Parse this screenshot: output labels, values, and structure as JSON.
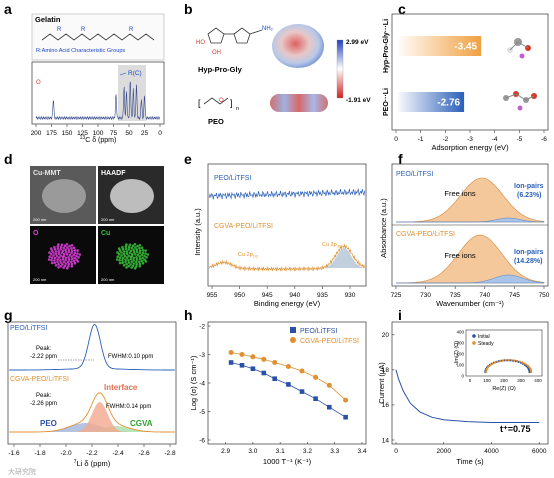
{
  "panels": {
    "a": {
      "letter": "a",
      "box_title": "Gelatin",
      "r_note": "R:Amino Acid Characteristic Groups",
      "r_label": "R",
      "rc_label": "R(C)",
      "xlabel_pre": "13",
      "xlabel": "C δ (ppm)",
      "xticks": [
        "200",
        "175",
        "150",
        "125",
        "100",
        "75",
        "50",
        "25",
        "0"
      ],
      "colors": {
        "spectrum": "#3a4a8c",
        "accent": "#1a48c8",
        "oxygen": "#d23b2a"
      }
    },
    "b": {
      "letter": "b",
      "mol1_label": "Hyp-Pro-Gly",
      "mol2_label": "PEO",
      "scale_max": "2.99 eV",
      "scale_min": "-1.91 eV",
      "nh2": "NH₂",
      "oh": "OH",
      "ho": "HO",
      "n_sub": "n"
    },
    "c": {
      "letter": "c",
      "xlabel": "Adsorption energy (eV)",
      "xticks": [
        "0",
        "-1",
        "-2",
        "-3",
        "-4",
        "-5",
        "-6"
      ],
      "bars": [
        {
          "label": "Hyp-Pro-Gly···Li",
          "value": -3.45,
          "text": "-3.45",
          "color": "#f0a040"
        },
        {
          "label": "PEO···Li",
          "value": -2.76,
          "text": "-2.76",
          "color": "#2a60b8"
        }
      ]
    },
    "d": {
      "letter": "d",
      "tiles": [
        {
          "label": "Cu-MMT",
          "scale": "200 nm",
          "color": "#e8e8e8"
        },
        {
          "label": "HAADF",
          "scale": "200 nm",
          "color": "#ffffff"
        },
        {
          "label": "O",
          "scale": "200 nm",
          "color": "#e040e0"
        },
        {
          "label": "Cu",
          "scale": "200 nm",
          "color": "#3ac43a"
        }
      ]
    },
    "e": {
      "letter": "e",
      "ylabel": "Intensity (a.u.)",
      "xlabel": "Binding energy (eV)",
      "xticks": [
        "955",
        "950",
        "945",
        "940",
        "935",
        "930"
      ],
      "trace1": "PEO/LiTFSI",
      "trace2": "CGVA-PEO/LiTFSI",
      "peak1": "Cu 2p",
      "peak1_sub": "1/2",
      "peak2": "Cu 2p",
      "peak2_sub": "3/2",
      "colors": {
        "peo": "#2a60b8",
        "cgva": "#e09030"
      }
    },
    "f": {
      "letter": "f",
      "ylabel": "Absorbance (a.u.)",
      "xlabel": "Wavenumber (cm⁻¹)",
      "xticks": [
        "725",
        "730",
        "735",
        "740",
        "745",
        "750"
      ],
      "trace1": "PEO/LiTFSI",
      "trace2": "CGVA-PEO/LiTFSI",
      "free1": "Free ions",
      "free2": "Free ions",
      "ip_label": "Ion-pairs",
      "ip1": "(6.23%)",
      "ip2": "(14.28%)"
    },
    "g": {
      "letter": "g",
      "trace1": "PEO/LiTFSI",
      "trace2": "CGVA-PEO/LiTFSI",
      "peak1_title": "Peak:",
      "peak1": "-2.22 ppm",
      "fwhm1": "FWHM:0.10 ppm",
      "peak2_title": "Peak:",
      "peak2": "-2.26 ppm",
      "fwhm2": "FWHM:0.14 ppm",
      "interface": "Interface",
      "peo": "PEO",
      "cgva": "CGVA",
      "xlabel_pre": "7",
      "xlabel": "Li δ (ppm)",
      "xticks": [
        "-1.6",
        "-1.8",
        "-2.0",
        "-2.2",
        "-2.4",
        "-2.6",
        "-2.8"
      ]
    },
    "h": {
      "letter": "h",
      "ylabel": "Log (σ) (S cm⁻¹)",
      "xlabel": "1000 T⁻¹ (K⁻¹)",
      "legend": [
        "PEO/LiTFSI",
        "CGVA-PEO/LiTFSI"
      ],
      "xticks": [
        "2.9",
        "3.0",
        "3.1",
        "3.2",
        "3.3",
        "3.4"
      ],
      "yticks": [
        "-2",
        "-3",
        "-4",
        "-5",
        "-6"
      ],
      "chart_data": {
        "type": "line",
        "xlim": [
          2.85,
          3.4
        ],
        "ylim": [
          -6,
          -2
        ],
        "series": [
          {
            "name": "PEO/LiTFSI",
            "color": "#2a50a8",
            "marker": "square",
            "x": [
              2.92,
              2.96,
              3.0,
              3.04,
              3.08,
              3.13,
              3.18,
              3.23,
              3.28,
              3.34
            ],
            "y": [
              -3.28,
              -3.38,
              -3.5,
              -3.65,
              -3.85,
              -4.05,
              -4.3,
              -4.55,
              -4.85,
              -5.2
            ]
          },
          {
            "name": "CGVA-PEO/LiTFSI",
            "color": "#e09030",
            "marker": "circle",
            "x": [
              2.92,
              2.96,
              3.0,
              3.04,
              3.08,
              3.13,
              3.18,
              3.23,
              3.28,
              3.34
            ],
            "y": [
              -2.93,
              -3.0,
              -3.08,
              -3.17,
              -3.28,
              -3.42,
              -3.58,
              -3.8,
              -4.08,
              -4.6
            ]
          }
        ]
      }
    },
    "i": {
      "letter": "i",
      "ylabel": "Current (μA)",
      "xlabel": "Time (s)",
      "xticks": [
        "0",
        "2000",
        "4000",
        "6000"
      ],
      "yticks": [
        "20",
        "18",
        "16",
        "14"
      ],
      "tplus": "t⁺=0.75",
      "inset_ylabel": "-Im(Z) (Ω)",
      "inset_xlabel": "Re(Z) (Ω)",
      "inset_xticks": [
        "0",
        "100",
        "200",
        "300",
        "400"
      ],
      "inset_yticks": [
        "0",
        "100",
        "200",
        "300",
        "400"
      ],
      "inset_legend": [
        "Initial",
        "Steady"
      ],
      "chart_data": {
        "type": "line",
        "xlim": [
          0,
          6200
        ],
        "ylim": [
          14,
          20.5
        ],
        "series": [
          {
            "name": "",
            "color": "#2a50a8",
            "x": [
              0,
              100,
              300,
              600,
              1000,
              1500,
              2000,
              3000,
              4000,
              5000,
              6000
            ],
            "y": [
              18.0,
              17.5,
              16.8,
              16.1,
              15.6,
              15.3,
              15.15,
              15.05,
              15.0,
              15.0,
              15.0
            ]
          }
        ]
      }
    }
  },
  "watermark": "大研究院"
}
